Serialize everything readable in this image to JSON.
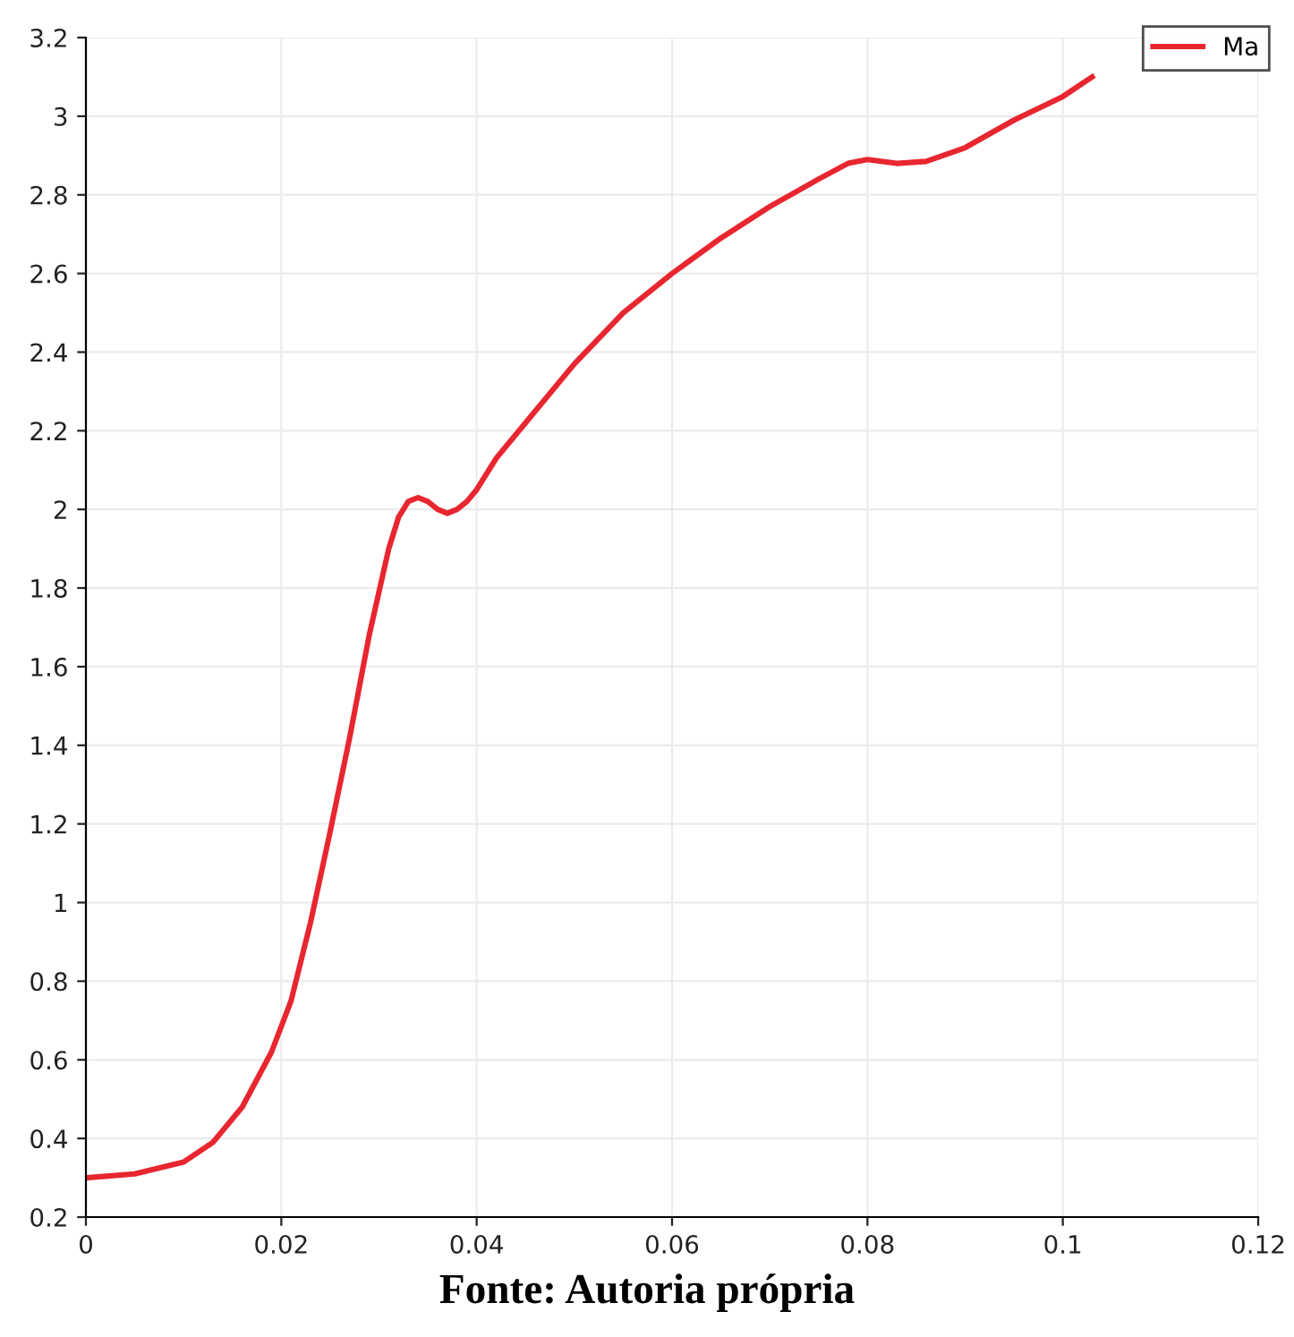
{
  "chart_data": {
    "type": "line",
    "x": [
      0,
      0.005,
      0.01,
      0.013,
      0.016,
      0.019,
      0.021,
      0.023,
      0.025,
      0.027,
      0.029,
      0.031,
      0.032,
      0.033,
      0.034,
      0.035,
      0.036,
      0.037,
      0.038,
      0.039,
      0.04,
      0.042,
      0.045,
      0.05,
      0.055,
      0.06,
      0.065,
      0.07,
      0.075,
      0.078,
      0.08,
      0.083,
      0.086,
      0.09,
      0.095,
      0.1,
      0.103
    ],
    "series": [
      {
        "name": "Ma",
        "color": "#e8262f",
        "values": [
          0.3,
          0.31,
          0.34,
          0.39,
          0.48,
          0.62,
          0.75,
          0.95,
          1.18,
          1.42,
          1.68,
          1.9,
          1.98,
          2.02,
          2.03,
          2.02,
          2.0,
          1.99,
          2.0,
          2.02,
          2.05,
          2.13,
          2.22,
          2.37,
          2.5,
          2.6,
          2.69,
          2.77,
          2.84,
          2.88,
          2.89,
          2.88,
          2.885,
          2.92,
          2.99,
          3.05,
          3.1
        ]
      }
    ],
    "xlim": [
      0,
      0.12
    ],
    "xticks": [
      0,
      0.02,
      0.04,
      0.06,
      0.08,
      0.1,
      0.12
    ],
    "ylim": [
      0.2,
      3.2
    ],
    "yticks": [
      0.2,
      0.4,
      0.6,
      0.8,
      1,
      1.2,
      1.4,
      1.6,
      1.8,
      2,
      2.2,
      2.4,
      2.6,
      2.8,
      3,
      3.2
    ],
    "grid": true,
    "legend": "top right",
    "marker": "none",
    "line_style": "solid",
    "annotations": [
      "Fonte: Autoria própria"
    ]
  }
}
